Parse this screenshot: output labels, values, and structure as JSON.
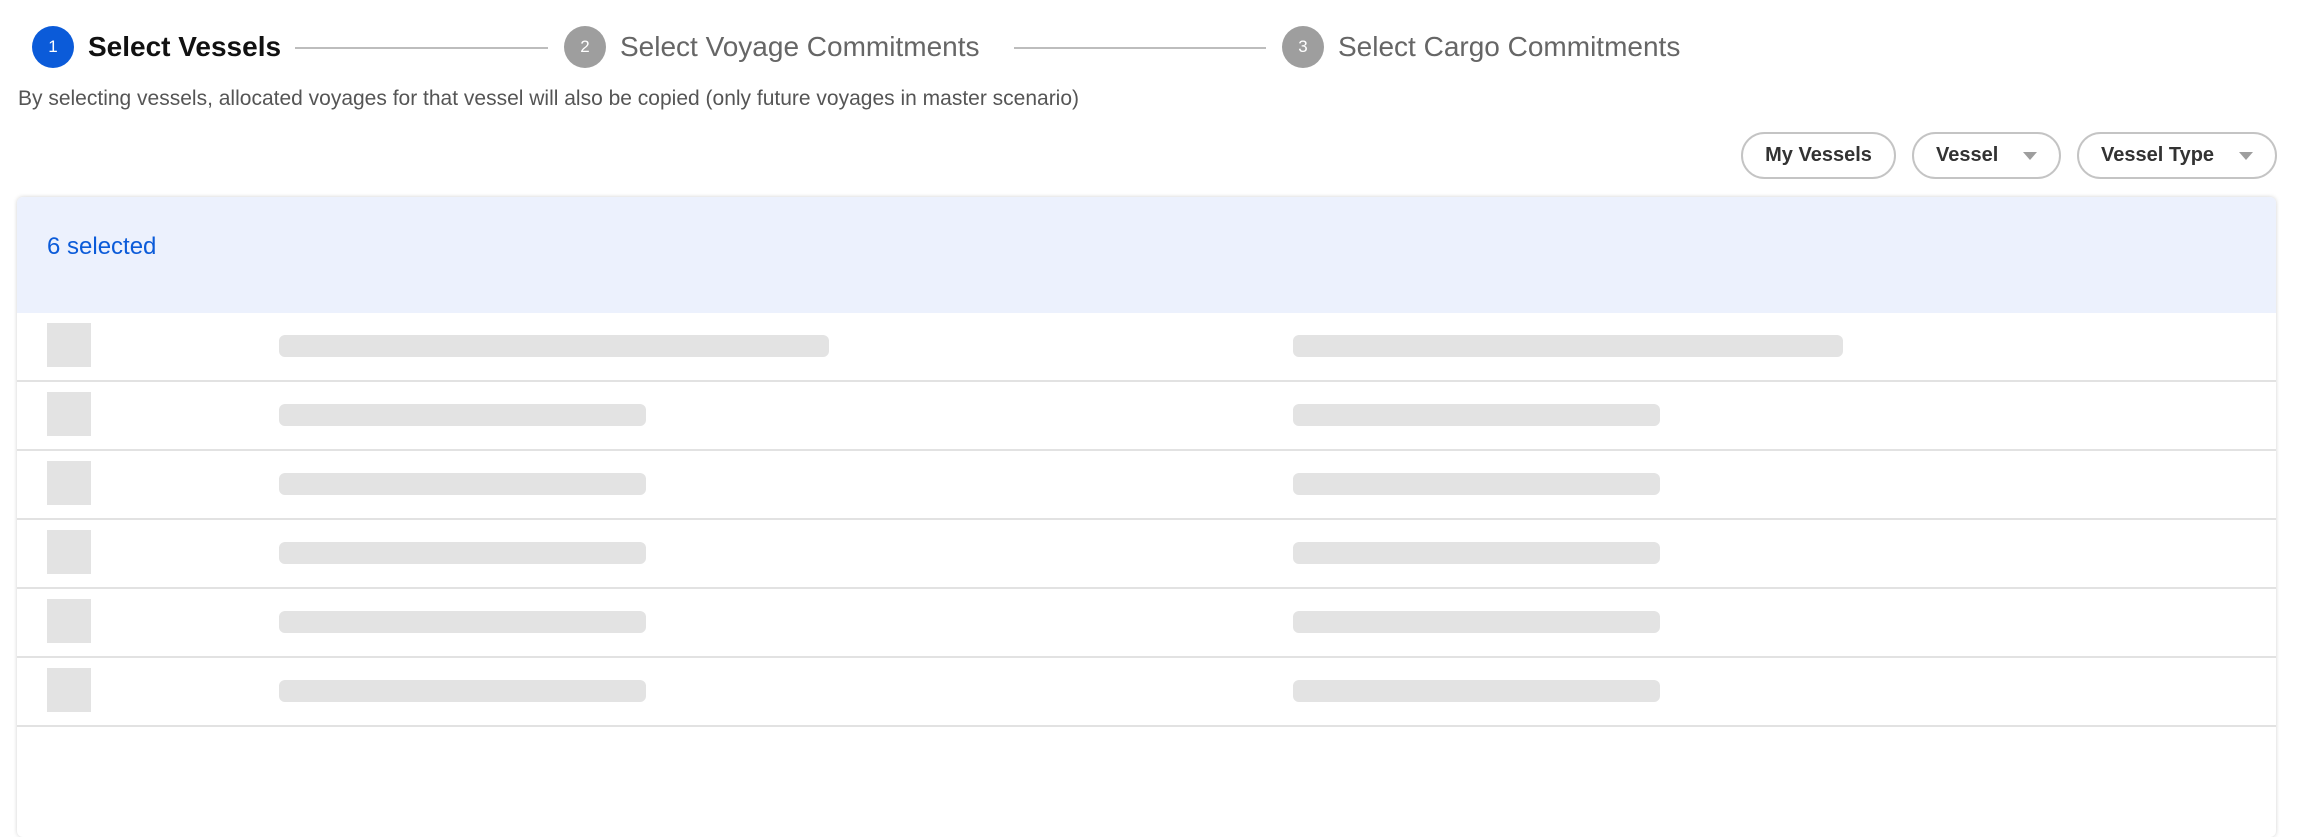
{
  "stepper": {
    "steps": [
      {
        "number": "1",
        "label": "Select Vessels",
        "state": "active"
      },
      {
        "number": "2",
        "label": "Select Voyage Commitments",
        "state": "inactive"
      },
      {
        "number": "3",
        "label": "Select Cargo Commitments",
        "state": "inactive"
      }
    ]
  },
  "description": "By selecting vessels, allocated voyages for that vessel will also be copied (only future voyages in master scenario)",
  "filters": {
    "my_vessels": "My Vessels",
    "vessel": "Vessel",
    "vessel_type": "Vessel Type"
  },
  "table": {
    "selected_text": "6 selected",
    "rows_loading": 6
  },
  "colors": {
    "accent": "#0b5bd9",
    "inactive_step": "#9e9e9e",
    "header_bg": "#ecf1fd",
    "skeleton": "#e3e3e3"
  }
}
